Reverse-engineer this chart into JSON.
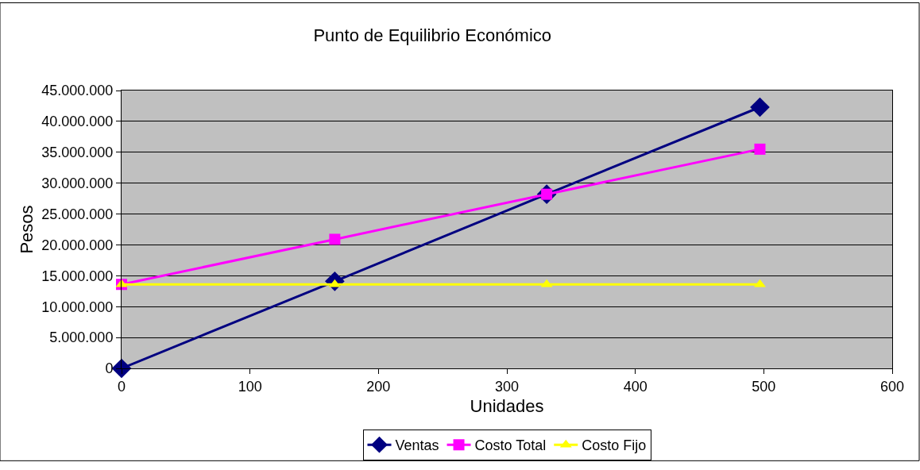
{
  "chart_data": {
    "type": "line",
    "title": "Punto de Equilibrio Económico",
    "xlabel": "Unidades",
    "ylabel": "Pesos",
    "x": [
      0,
      166,
      331,
      497
    ],
    "series": [
      {
        "name": "Ventas",
        "color": "#000080",
        "marker": "diamond",
        "values": [
          0,
          14100000,
          28200000,
          42300000
        ]
      },
      {
        "name": "Costo Total",
        "color": "#ff00ff",
        "marker": "square",
        "values": [
          13600000,
          20900000,
          28200000,
          35500000
        ]
      },
      {
        "name": "Costo Fijo",
        "color": "#ffff00",
        "marker": "triangle",
        "values": [
          13600000,
          13600000,
          13600000,
          13600000
        ]
      }
    ],
    "xlim": [
      0,
      600
    ],
    "xticks": [
      0,
      100,
      200,
      300,
      400,
      500,
      600
    ],
    "ylim": [
      0,
      45000000
    ],
    "yticks": [
      0,
      {
        "value": 5000000,
        "label": "5.000.000"
      },
      {
        "value": 10000000,
        "label": "10.000.000"
      },
      {
        "value": 15000000,
        "label": "15.000.000"
      },
      {
        "value": 20000000,
        "label": "20.000.000"
      },
      {
        "value": 25000000,
        "label": "25.000.000"
      },
      {
        "value": 30000000,
        "label": "30.000.000"
      },
      {
        "value": 35000000,
        "label": "35.000.000"
      },
      {
        "value": 40000000,
        "label": "40.000.000"
      },
      {
        "value": 45000000,
        "label": "45.000.000"
      }
    ],
    "grid": "y",
    "legend": "bottom",
    "line_style": "solid"
  }
}
